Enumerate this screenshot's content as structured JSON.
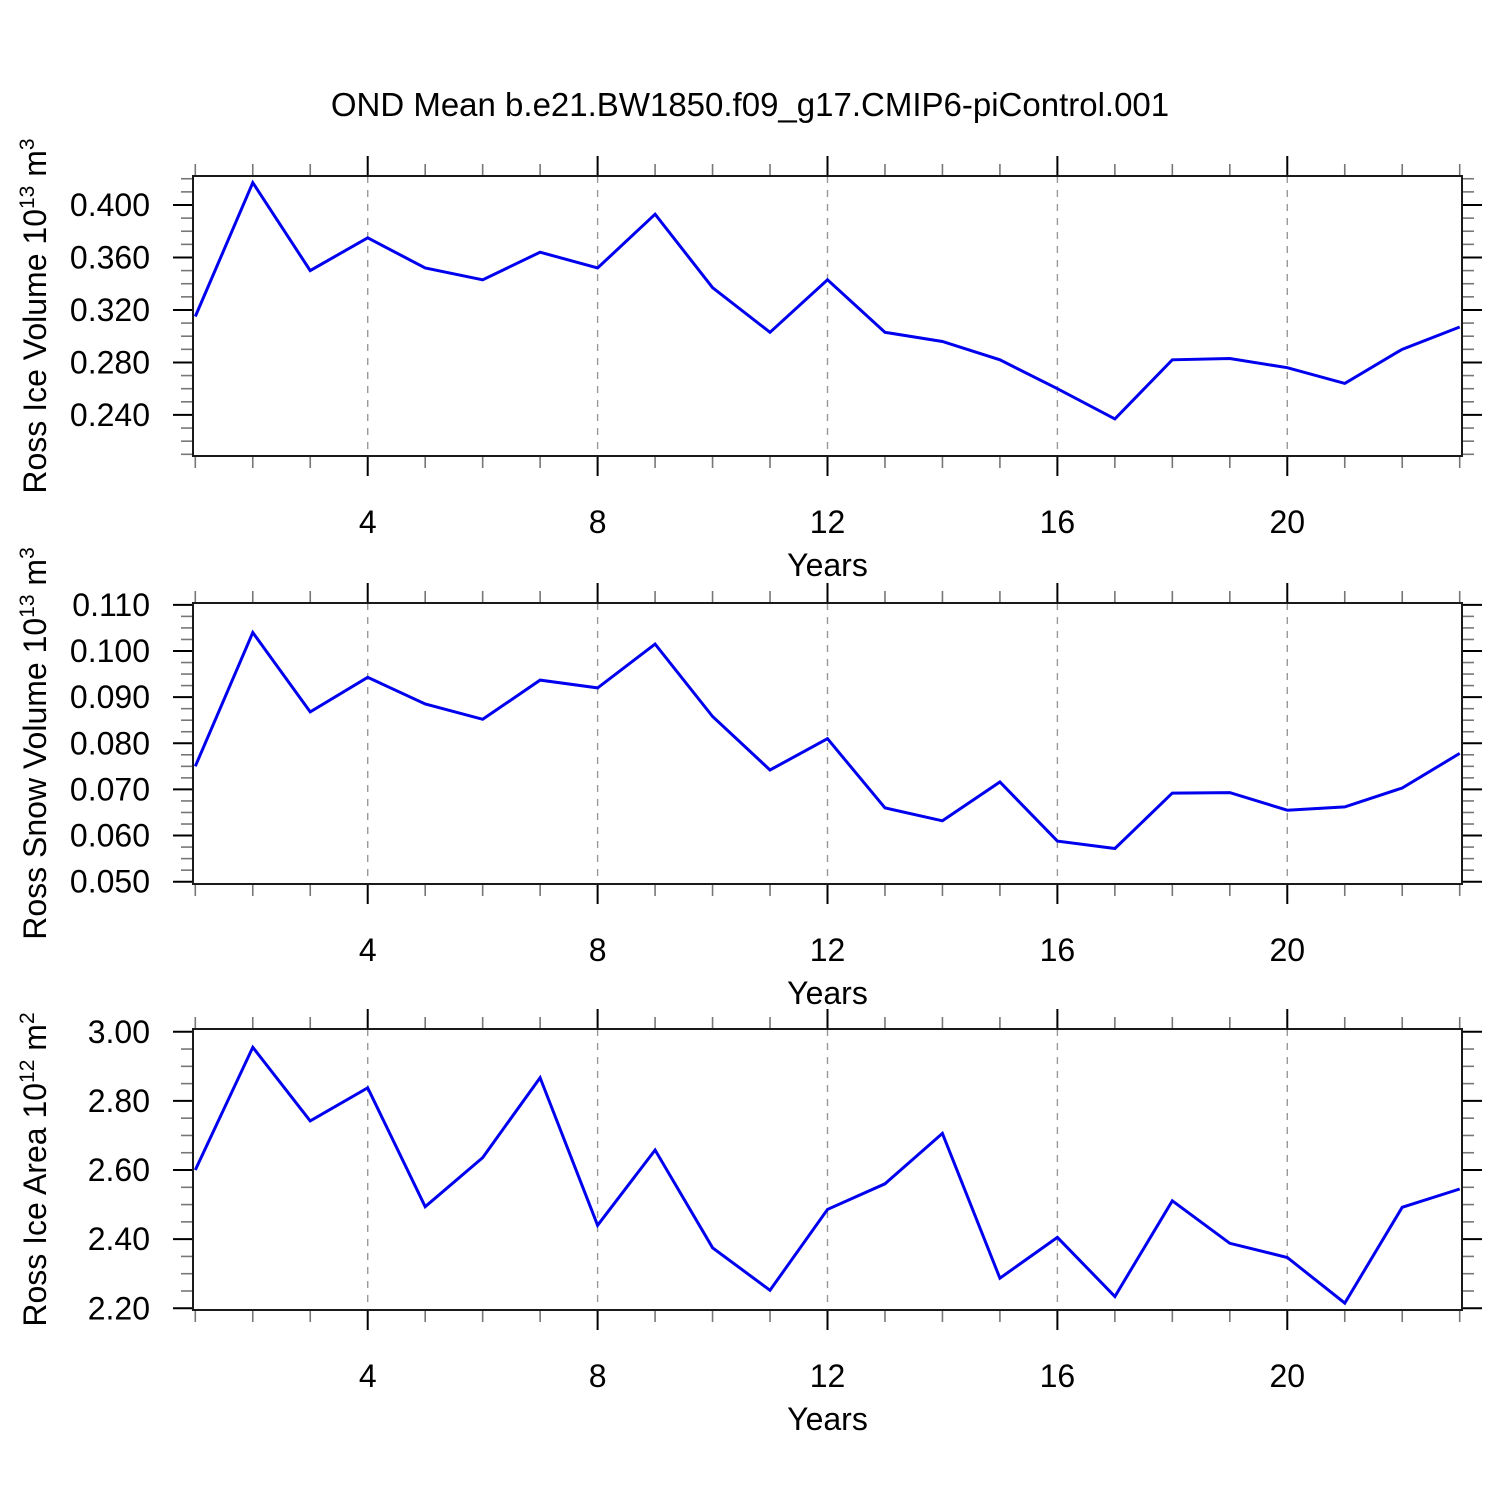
{
  "title": "OND Mean b.e21.BW1850.f09_g17.CMIP6-piControl.001",
  "background": "#ffffff",
  "colors": {
    "line": "#0000EE",
    "grid": "#999999",
    "axis": "#1A1A1A",
    "major_tick": "#000000",
    "minor_tick": "#777777",
    "text": "#000000"
  },
  "chart_data": [
    {
      "type": "line",
      "name": "ross-ice-volume",
      "ylabel_text": "Ross Ice Volume 10^13 m^3",
      "ylabel_parts": [
        "Ross Ice Volume 10",
        {
          "sup": "13"
        },
        " m",
        {
          "sup": "3"
        }
      ],
      "xlabel": "Years",
      "x": [
        1,
        2,
        3,
        4,
        5,
        6,
        7,
        8,
        9,
        10,
        11,
        12,
        13,
        14,
        15,
        16,
        17,
        18,
        19,
        20,
        21,
        22,
        23
      ],
      "values": [
        0.315,
        0.417,
        0.35,
        0.375,
        0.352,
        0.343,
        0.364,
        0.352,
        0.393,
        0.337,
        0.303,
        0.343,
        0.303,
        0.296,
        0.282,
        0.26,
        0.237,
        0.282,
        0.283,
        0.276,
        0.264,
        0.29,
        0.307
      ],
      "xlim": [
        0.96,
        23.04
      ],
      "ylim": [
        0.2087,
        0.4221
      ],
      "xticks_major": [
        4,
        8,
        12,
        16,
        20
      ],
      "xminor_step": 1,
      "ytick_values": [
        0.24,
        0.28,
        0.32,
        0.36,
        0.4
      ],
      "ytick_labels": [
        "0.240",
        "0.280",
        "0.320",
        "0.360",
        "0.400"
      ],
      "yminor_step": 0.01,
      "grid": "dashed-vertical"
    },
    {
      "type": "line",
      "name": "ross-snow-volume",
      "ylabel_text": "Ross Snow Volume 10^13 m^3",
      "ylabel_parts": [
        "Ross Snow Volume 10",
        {
          "sup": "13"
        },
        " m",
        {
          "sup": "3"
        }
      ],
      "xlabel": "Years",
      "x": [
        1,
        2,
        3,
        4,
        5,
        6,
        7,
        8,
        9,
        10,
        11,
        12,
        13,
        14,
        15,
        16,
        17,
        18,
        19,
        20,
        21,
        22,
        23
      ],
      "values": [
        0.075,
        0.104,
        0.0868,
        0.0943,
        0.0885,
        0.0852,
        0.0937,
        0.092,
        0.1015,
        0.0858,
        0.0742,
        0.081,
        0.066,
        0.0632,
        0.0716,
        0.0588,
        0.0572,
        0.0692,
        0.0693,
        0.0655,
        0.0662,
        0.0703,
        0.0778
      ],
      "xlim": [
        0.96,
        23.04
      ],
      "ylim": [
        0.0495,
        0.1104
      ],
      "xticks_major": [
        4,
        8,
        12,
        16,
        20
      ],
      "xminor_step": 1,
      "ytick_values": [
        0.05,
        0.06,
        0.07,
        0.08,
        0.09,
        0.1,
        0.11
      ],
      "ytick_labels": [
        "0.050",
        "0.060",
        "0.070",
        "0.080",
        "0.090",
        "0.100",
        "0.110"
      ],
      "yminor_step": 0.0025,
      "grid": "dashed-vertical"
    },
    {
      "type": "line",
      "name": "ross-ice-area",
      "ylabel_text": "Ross Ice Area 10^12 m^2",
      "ylabel_parts": [
        "Ross Ice Area 10",
        {
          "sup": "12"
        },
        " m",
        {
          "sup": "2"
        }
      ],
      "xlabel": "Years",
      "x": [
        1,
        2,
        3,
        4,
        5,
        6,
        7,
        8,
        9,
        10,
        11,
        12,
        13,
        14,
        15,
        16,
        17,
        18,
        19,
        20,
        21,
        22,
        23
      ],
      "values": [
        2.6,
        2.955,
        2.742,
        2.838,
        2.494,
        2.636,
        2.867,
        2.44,
        2.658,
        2.375,
        2.252,
        2.486,
        2.56,
        2.706,
        2.287,
        2.405,
        2.234,
        2.511,
        2.388,
        2.347,
        2.215,
        2.492,
        2.545
      ],
      "xlim": [
        0.96,
        23.04
      ],
      "ylim": [
        2.195,
        3.008
      ],
      "xticks_major": [
        4,
        8,
        12,
        16,
        20
      ],
      "xminor_step": 1,
      "ytick_values": [
        2.2,
        2.4,
        2.6,
        2.8,
        3.0
      ],
      "ytick_labels": [
        "2.20",
        "2.40",
        "2.60",
        "2.80",
        "3.00"
      ],
      "yminor_step": 0.05,
      "grid": "dashed-vertical"
    }
  ]
}
